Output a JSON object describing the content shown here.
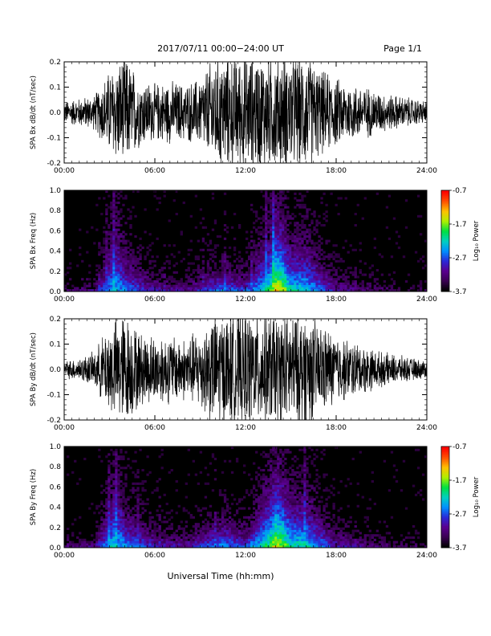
{
  "header": {
    "title": "2017/07/11  00:00−24:00 UT",
    "page": "Page 1/1"
  },
  "footer": {
    "xlabel": "Universal Time (hh:mm)"
  },
  "colors": {
    "waveform": "#000000",
    "spectrogram_background": "#000000",
    "colormap": [
      "#000000",
      "#3a0052",
      "#5a0090",
      "#2a2ad8",
      "#0090ff",
      "#00d0c0",
      "#00e040",
      "#b0f000",
      "#ffc000",
      "#ff5000",
      "#ff0000"
    ]
  },
  "chart_data": [
    {
      "type": "line",
      "ylabel": "SPA Bx dB/dt (nT/sec)",
      "xlim": [
        "00:00",
        "24:00"
      ],
      "ylim": [
        -0.2,
        0.2
      ],
      "x_ticks": [
        "00:00",
        "06:00",
        "12:00",
        "18:00",
        "24:00"
      ],
      "y_ticks": [
        "-0.2",
        "-0.1",
        "0.0",
        "0.1",
        "0.2"
      ],
      "series": [
        {
          "x": [
            "00:00",
            "01:00",
            "02:00",
            "03:00",
            "04:00",
            "05:00",
            "06:00",
            "07:00",
            "08:00",
            "09:00",
            "10:00",
            "11:00",
            "12:00",
            "13:00",
            "14:00",
            "15:00",
            "16:00",
            "17:00",
            "18:00",
            "19:00",
            "20:00",
            "21:00",
            "22:00",
            "23:00",
            "24:00"
          ],
          "amplitude": [
            0.04,
            0.05,
            0.06,
            0.15,
            0.2,
            0.12,
            0.1,
            0.11,
            0.1,
            0.12,
            0.2,
            0.2,
            0.2,
            0.2,
            0.2,
            0.2,
            0.2,
            0.15,
            0.12,
            0.1,
            0.09,
            0.07,
            0.06,
            0.05,
            0.04
          ]
        }
      ]
    },
    {
      "type": "heatmap",
      "ylabel": "SPA Bx Freq (Hz)",
      "xlim": [
        "00:00",
        "24:00"
      ],
      "ylim": [
        0.0,
        1.0
      ],
      "x_ticks": [
        "00:00",
        "06:00",
        "12:00",
        "18:00",
        "24:00"
      ],
      "y_ticks": [
        "0.0",
        "0.2",
        "0.4",
        "0.6",
        "0.8",
        "1.0"
      ],
      "colorbar": {
        "label": "Log₁₀ Power",
        "ticks": [
          "-0.7",
          "-1.7",
          "-2.7",
          "-3.7"
        ],
        "range": [
          -3.7,
          -0.7
        ]
      },
      "x_hours": [
        0,
        2,
        3.3,
        3.6,
        4,
        6,
        8,
        9.5,
        10.5,
        12,
        13.5,
        14,
        14.5,
        15,
        16,
        18,
        20,
        22,
        24
      ],
      "peak_log_power": [
        -3.3,
        -3.1,
        -2.2,
        -2.4,
        -2.5,
        -2.9,
        -3.1,
        -2.7,
        -2.5,
        -2.7,
        -2.0,
        -1.3,
        -1.5,
        -2.1,
        -2.2,
        -3.0,
        -3.2,
        -3.4,
        -3.4
      ],
      "band_extent_hz": [
        0.1,
        0.15,
        0.9,
        1.0,
        0.6,
        0.25,
        0.2,
        0.35,
        0.4,
        0.3,
        0.8,
        1.0,
        0.9,
        0.7,
        0.75,
        0.3,
        0.2,
        0.15,
        0.1
      ]
    },
    {
      "type": "line",
      "ylabel": "SPA By dB/dt (nT/sec)",
      "xlim": [
        "00:00",
        "24:00"
      ],
      "ylim": [
        -0.2,
        0.2
      ],
      "x_ticks": [
        "00:00",
        "06:00",
        "12:00",
        "18:00",
        "24:00"
      ],
      "y_ticks": [
        "-0.2",
        "-0.1",
        "0.0",
        "0.1",
        "0.2"
      ],
      "series": [
        {
          "x": [
            "00:00",
            "01:00",
            "02:00",
            "03:00",
            "04:00",
            "05:00",
            "06:00",
            "07:00",
            "08:00",
            "09:00",
            "10:00",
            "11:00",
            "12:00",
            "13:00",
            "14:00",
            "15:00",
            "16:00",
            "17:00",
            "18:00",
            "19:00",
            "20:00",
            "21:00",
            "22:00",
            "23:00",
            "24:00"
          ],
          "amplitude": [
            0.03,
            0.04,
            0.06,
            0.16,
            0.2,
            0.13,
            0.12,
            0.12,
            0.11,
            0.14,
            0.2,
            0.2,
            0.2,
            0.2,
            0.2,
            0.2,
            0.2,
            0.16,
            0.12,
            0.1,
            0.08,
            0.06,
            0.05,
            0.04,
            0.03
          ]
        }
      ]
    },
    {
      "type": "heatmap",
      "ylabel": "SPA By Freq (Hz)",
      "xlim": [
        "00:00",
        "24:00"
      ],
      "ylim": [
        0.0,
        1.0
      ],
      "x_ticks": [
        "00:00",
        "06:00",
        "12:00",
        "18:00",
        "24:00"
      ],
      "y_ticks": [
        "0.0",
        "0.2",
        "0.4",
        "0.6",
        "0.8",
        "1.0"
      ],
      "colorbar": {
        "label": "Log₁₀ Power",
        "ticks": [
          "-0.7",
          "-1.7",
          "-2.7",
          "-3.7"
        ],
        "range": [
          -3.7,
          -0.7
        ]
      },
      "x_hours": [
        0,
        2,
        3.3,
        3.6,
        4,
        6,
        8,
        9.5,
        10.5,
        12,
        13.5,
        14,
        14.5,
        15,
        16,
        18,
        20,
        22,
        24
      ],
      "peak_log_power": [
        -3.2,
        -3.0,
        -2.1,
        -2.3,
        -2.4,
        -2.8,
        -3.0,
        -2.6,
        -2.4,
        -2.6,
        -1.9,
        -1.4,
        -1.6,
        -2.0,
        -2.1,
        -2.9,
        -3.1,
        -3.3,
        -3.3
      ],
      "band_extent_hz": [
        0.1,
        0.15,
        0.9,
        1.0,
        0.6,
        0.3,
        0.25,
        0.35,
        0.45,
        0.3,
        0.85,
        1.0,
        0.95,
        0.7,
        0.75,
        0.3,
        0.2,
        0.15,
        0.1
      ]
    }
  ]
}
